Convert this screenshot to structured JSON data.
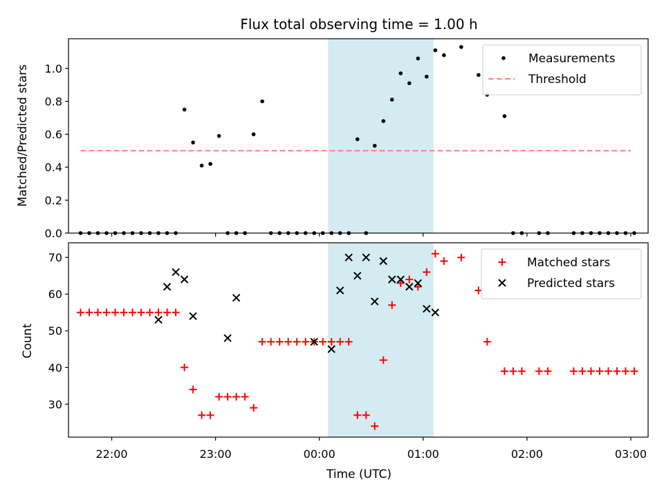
{
  "chart_data": {
    "type": "scatter",
    "title": "Flux total observing time = 1.00 h",
    "xlabel": "Time (UTC)",
    "x_tick_labels": [
      "22:00",
      "23:00",
      "00:00",
      "01:00",
      "02:00",
      "03:00"
    ],
    "x_ticks": [
      "22:00",
      "23:00",
      "00:00",
      "01:00",
      "02:00",
      "03:00"
    ],
    "xlim": [
      "21:35",
      "03:10"
    ],
    "highlight_span": {
      "from": "00:05",
      "to": "01:06",
      "color": "#d4ebf2"
    },
    "panels": [
      {
        "ylabel": "Matched/Predicted stars",
        "ylim": [
          0,
          1.18
        ],
        "y_ticks": [
          0.0,
          0.2,
          0.4,
          0.6,
          0.8,
          1.0
        ],
        "y_tick_labels": [
          "0.0",
          "0.2",
          "0.4",
          "0.6",
          "0.8",
          "1.0"
        ],
        "legend_position": "top-right",
        "threshold": {
          "name": "Threshold",
          "value": 0.5,
          "from": "21:42",
          "to": "03:00",
          "color": "#ff7f7f"
        },
        "series": [
          {
            "name": "Measurements",
            "marker": "dot",
            "color": "#000000",
            "x": [
              "21:42",
              "21:47",
              "21:52",
              "21:57",
              "22:02",
              "22:07",
              "22:12",
              "22:17",
              "22:22",
              "22:27",
              "22:32",
              "22:37",
              "22:42",
              "22:47",
              "22:52",
              "22:57",
              "23:02",
              "23:07",
              "23:12",
              "23:17",
              "23:22",
              "23:27",
              "23:32",
              "23:37",
              "23:42",
              "23:47",
              "23:52",
              "23:57",
              "00:02",
              "00:07",
              "00:12",
              "00:17",
              "00:22",
              "00:27",
              "00:32",
              "00:37",
              "00:42",
              "00:47",
              "00:52",
              "00:57",
              "01:02",
              "01:07",
              "01:12",
              "01:22",
              "01:32",
              "01:37",
              "01:47",
              "01:52",
              "01:57",
              "02:07",
              "02:12",
              "02:27",
              "02:32",
              "02:37",
              "02:42",
              "02:47",
              "02:52",
              "02:57",
              "03:02"
            ],
            "y": [
              0,
              0,
              0,
              0,
              0,
              0,
              0,
              0,
              0,
              0,
              0,
              0,
              0.75,
              0.55,
              0.41,
              0.42,
              0.59,
              0,
              0,
              0,
              0.6,
              0.8,
              0,
              0,
              0,
              0,
              0,
              0,
              0,
              0,
              0,
              0,
              0.57,
              0,
              0.53,
              0.68,
              0.81,
              0.97,
              0.91,
              1.06,
              0.95,
              1.11,
              1.08,
              1.13,
              0.96,
              0.84,
              0.71,
              0,
              0,
              0,
              0,
              0,
              0,
              0,
              0,
              0,
              0,
              0,
              0
            ]
          }
        ]
      },
      {
        "ylabel": "Count",
        "ylim": [
          21,
          74
        ],
        "y_ticks": [
          30,
          40,
          50,
          60,
          70
        ],
        "y_tick_labels": [
          "30",
          "40",
          "50",
          "60",
          "70"
        ],
        "legend_position": "top-right",
        "series": [
          {
            "name": "Matched stars",
            "marker": "plus",
            "color": "#ff0000",
            "x": [
              "21:42",
              "21:47",
              "21:52",
              "21:57",
              "22:02",
              "22:07",
              "22:12",
              "22:17",
              "22:22",
              "22:27",
              "22:32",
              "22:37",
              "22:42",
              "22:47",
              "22:52",
              "22:57",
              "23:02",
              "23:07",
              "23:12",
              "23:17",
              "23:22",
              "23:27",
              "23:32",
              "23:37",
              "23:42",
              "23:47",
              "23:52",
              "23:57",
              "00:02",
              "00:07",
              "00:12",
              "00:17",
              "00:22",
              "00:27",
              "00:32",
              "00:37",
              "00:42",
              "00:47",
              "00:52",
              "00:57",
              "01:02",
              "01:07",
              "01:12",
              "01:22",
              "01:32",
              "01:37",
              "01:47",
              "01:52",
              "01:57",
              "02:07",
              "02:12",
              "02:27",
              "02:32",
              "02:37",
              "02:42",
              "02:47",
              "02:52",
              "02:57",
              "03:02"
            ],
            "y": [
              55,
              55,
              55,
              55,
              55,
              55,
              55,
              55,
              55,
              55,
              55,
              55,
              40,
              34,
              27,
              27,
              32,
              32,
              32,
              32,
              29,
              47,
              47,
              47,
              47,
              47,
              47,
              47,
              47,
              47,
              47,
              47,
              27,
              27,
              24,
              42,
              57,
              63,
              64,
              62,
              66,
              71,
              69,
              70,
              61,
              47,
              39,
              39,
              39,
              39,
              39,
              39,
              39,
              39,
              39,
              39,
              39,
              39,
              39
            ]
          },
          {
            "name": "Predicted stars",
            "marker": "x",
            "color": "#000000",
            "x": [
              "22:27",
              "22:32",
              "22:37",
              "22:42",
              "22:47",
              "23:07",
              "23:12",
              "23:57",
              "00:07",
              "00:12",
              "00:17",
              "00:22",
              "00:27",
              "00:32",
              "00:37",
              "00:42",
              "00:47",
              "00:52",
              "00:57",
              "01:02",
              "01:07"
            ],
            "y": [
              53,
              62,
              66,
              64,
              54,
              48,
              59,
              47,
              45,
              61,
              70,
              65,
              70,
              58,
              69,
              64,
              64,
              62,
              63,
              56,
              55
            ]
          }
        ]
      }
    ]
  }
}
